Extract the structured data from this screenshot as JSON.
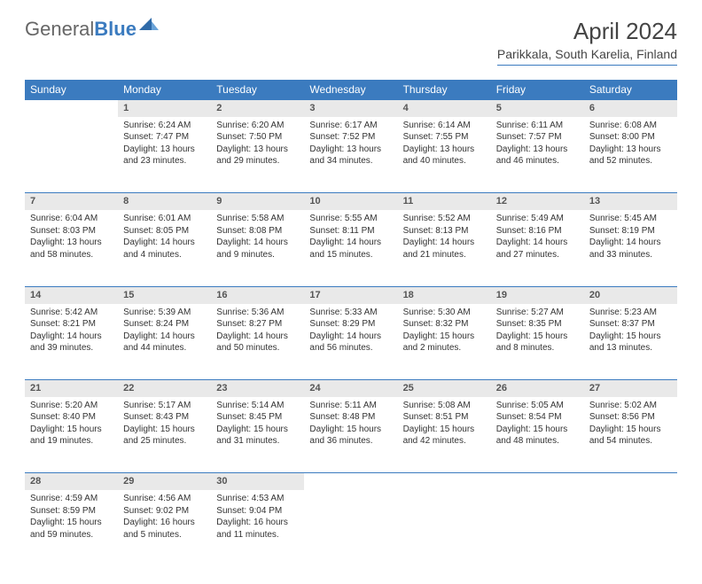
{
  "logo": {
    "part1": "General",
    "part2": "Blue"
  },
  "title": "April 2024",
  "location": "Parikkala, South Karelia, Finland",
  "colors": {
    "header_bg": "#3b7bbf",
    "header_fg": "#ffffff",
    "daynum_bg": "#e9e9e9",
    "border": "#3b7bbf",
    "text": "#333333"
  },
  "weekdays": [
    "Sunday",
    "Monday",
    "Tuesday",
    "Wednesday",
    "Thursday",
    "Friday",
    "Saturday"
  ],
  "weeks": [
    [
      null,
      {
        "n": "1",
        "sr": "Sunrise: 6:24 AM",
        "ss": "Sunset: 7:47 PM",
        "d1": "Daylight: 13 hours",
        "d2": "and 23 minutes."
      },
      {
        "n": "2",
        "sr": "Sunrise: 6:20 AM",
        "ss": "Sunset: 7:50 PM",
        "d1": "Daylight: 13 hours",
        "d2": "and 29 minutes."
      },
      {
        "n": "3",
        "sr": "Sunrise: 6:17 AM",
        "ss": "Sunset: 7:52 PM",
        "d1": "Daylight: 13 hours",
        "d2": "and 34 minutes."
      },
      {
        "n": "4",
        "sr": "Sunrise: 6:14 AM",
        "ss": "Sunset: 7:55 PM",
        "d1": "Daylight: 13 hours",
        "d2": "and 40 minutes."
      },
      {
        "n": "5",
        "sr": "Sunrise: 6:11 AM",
        "ss": "Sunset: 7:57 PM",
        "d1": "Daylight: 13 hours",
        "d2": "and 46 minutes."
      },
      {
        "n": "6",
        "sr": "Sunrise: 6:08 AM",
        "ss": "Sunset: 8:00 PM",
        "d1": "Daylight: 13 hours",
        "d2": "and 52 minutes."
      }
    ],
    [
      {
        "n": "7",
        "sr": "Sunrise: 6:04 AM",
        "ss": "Sunset: 8:03 PM",
        "d1": "Daylight: 13 hours",
        "d2": "and 58 minutes."
      },
      {
        "n": "8",
        "sr": "Sunrise: 6:01 AM",
        "ss": "Sunset: 8:05 PM",
        "d1": "Daylight: 14 hours",
        "d2": "and 4 minutes."
      },
      {
        "n": "9",
        "sr": "Sunrise: 5:58 AM",
        "ss": "Sunset: 8:08 PM",
        "d1": "Daylight: 14 hours",
        "d2": "and 9 minutes."
      },
      {
        "n": "10",
        "sr": "Sunrise: 5:55 AM",
        "ss": "Sunset: 8:11 PM",
        "d1": "Daylight: 14 hours",
        "d2": "and 15 minutes."
      },
      {
        "n": "11",
        "sr": "Sunrise: 5:52 AM",
        "ss": "Sunset: 8:13 PM",
        "d1": "Daylight: 14 hours",
        "d2": "and 21 minutes."
      },
      {
        "n": "12",
        "sr": "Sunrise: 5:49 AM",
        "ss": "Sunset: 8:16 PM",
        "d1": "Daylight: 14 hours",
        "d2": "and 27 minutes."
      },
      {
        "n": "13",
        "sr": "Sunrise: 5:45 AM",
        "ss": "Sunset: 8:19 PM",
        "d1": "Daylight: 14 hours",
        "d2": "and 33 minutes."
      }
    ],
    [
      {
        "n": "14",
        "sr": "Sunrise: 5:42 AM",
        "ss": "Sunset: 8:21 PM",
        "d1": "Daylight: 14 hours",
        "d2": "and 39 minutes."
      },
      {
        "n": "15",
        "sr": "Sunrise: 5:39 AM",
        "ss": "Sunset: 8:24 PM",
        "d1": "Daylight: 14 hours",
        "d2": "and 44 minutes."
      },
      {
        "n": "16",
        "sr": "Sunrise: 5:36 AM",
        "ss": "Sunset: 8:27 PM",
        "d1": "Daylight: 14 hours",
        "d2": "and 50 minutes."
      },
      {
        "n": "17",
        "sr": "Sunrise: 5:33 AM",
        "ss": "Sunset: 8:29 PM",
        "d1": "Daylight: 14 hours",
        "d2": "and 56 minutes."
      },
      {
        "n": "18",
        "sr": "Sunrise: 5:30 AM",
        "ss": "Sunset: 8:32 PM",
        "d1": "Daylight: 15 hours",
        "d2": "and 2 minutes."
      },
      {
        "n": "19",
        "sr": "Sunrise: 5:27 AM",
        "ss": "Sunset: 8:35 PM",
        "d1": "Daylight: 15 hours",
        "d2": "and 8 minutes."
      },
      {
        "n": "20",
        "sr": "Sunrise: 5:23 AM",
        "ss": "Sunset: 8:37 PM",
        "d1": "Daylight: 15 hours",
        "d2": "and 13 minutes."
      }
    ],
    [
      {
        "n": "21",
        "sr": "Sunrise: 5:20 AM",
        "ss": "Sunset: 8:40 PM",
        "d1": "Daylight: 15 hours",
        "d2": "and 19 minutes."
      },
      {
        "n": "22",
        "sr": "Sunrise: 5:17 AM",
        "ss": "Sunset: 8:43 PM",
        "d1": "Daylight: 15 hours",
        "d2": "and 25 minutes."
      },
      {
        "n": "23",
        "sr": "Sunrise: 5:14 AM",
        "ss": "Sunset: 8:45 PM",
        "d1": "Daylight: 15 hours",
        "d2": "and 31 minutes."
      },
      {
        "n": "24",
        "sr": "Sunrise: 5:11 AM",
        "ss": "Sunset: 8:48 PM",
        "d1": "Daylight: 15 hours",
        "d2": "and 36 minutes."
      },
      {
        "n": "25",
        "sr": "Sunrise: 5:08 AM",
        "ss": "Sunset: 8:51 PM",
        "d1": "Daylight: 15 hours",
        "d2": "and 42 minutes."
      },
      {
        "n": "26",
        "sr": "Sunrise: 5:05 AM",
        "ss": "Sunset: 8:54 PM",
        "d1": "Daylight: 15 hours",
        "d2": "and 48 minutes."
      },
      {
        "n": "27",
        "sr": "Sunrise: 5:02 AM",
        "ss": "Sunset: 8:56 PM",
        "d1": "Daylight: 15 hours",
        "d2": "and 54 minutes."
      }
    ],
    [
      {
        "n": "28",
        "sr": "Sunrise: 4:59 AM",
        "ss": "Sunset: 8:59 PM",
        "d1": "Daylight: 15 hours",
        "d2": "and 59 minutes."
      },
      {
        "n": "29",
        "sr": "Sunrise: 4:56 AM",
        "ss": "Sunset: 9:02 PM",
        "d1": "Daylight: 16 hours",
        "d2": "and 5 minutes."
      },
      {
        "n": "30",
        "sr": "Sunrise: 4:53 AM",
        "ss": "Sunset: 9:04 PM",
        "d1": "Daylight: 16 hours",
        "d2": "and 11 minutes."
      },
      null,
      null,
      null,
      null
    ]
  ]
}
